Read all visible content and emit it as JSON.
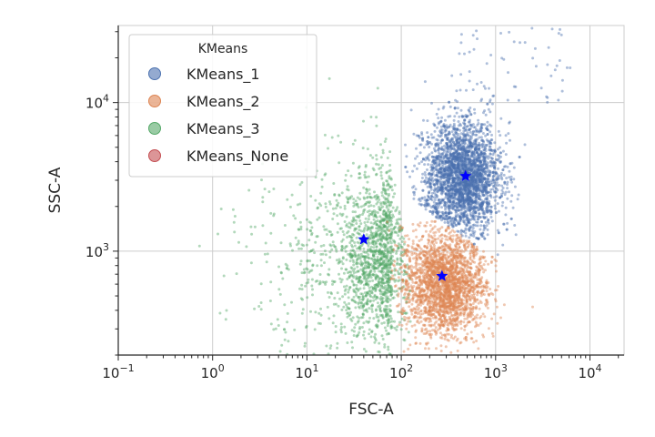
{
  "chart_data": {
    "type": "scatter",
    "xlabel": "FSC-A",
    "ylabel": "SSC-A",
    "xscale": "log",
    "yscale": "log",
    "xlim": [
      0.1,
      23000
    ],
    "ylim": [
      200,
      33000
    ],
    "grid": true,
    "x_ticks": [
      {
        "value": 0.1,
        "base": "10",
        "exp": "−1"
      },
      {
        "value": 1,
        "base": "10",
        "exp": "0"
      },
      {
        "value": 10,
        "base": "10",
        "exp": "1"
      },
      {
        "value": 100,
        "base": "10",
        "exp": "2"
      },
      {
        "value": 1000,
        "base": "10",
        "exp": "3"
      },
      {
        "value": 10000,
        "base": "10",
        "exp": "4"
      }
    ],
    "y_ticks": [
      {
        "value": 1000,
        "base": "10",
        "exp": "3"
      },
      {
        "value": 10000,
        "base": "10",
        "exp": "4"
      }
    ],
    "legend": {
      "title": "KMeans",
      "placement": "upper-left",
      "entries": [
        {
          "name": "KMeans_1",
          "color": "#4c72b0"
        },
        {
          "name": "KMeans_2",
          "color": "#dd8452"
        },
        {
          "name": "KMeans_3",
          "color": "#55a868"
        },
        {
          "name": "KMeans_None",
          "color": "#c44e52"
        }
      ]
    },
    "series": [
      {
        "name": "KMeans_1",
        "color": "#4c72b0",
        "center": [
          480,
          3200
        ],
        "extent": {
          "x": [
            100,
            1500
          ],
          "y": [
            1000,
            20000
          ]
        }
      },
      {
        "name": "KMeans_2",
        "color": "#dd8452",
        "center": [
          270,
          680
        ],
        "extent": {
          "x": [
            80,
            2000
          ],
          "y": [
            200,
            2000
          ]
        }
      },
      {
        "name": "KMeans_3",
        "color": "#55a868",
        "center": [
          40,
          1200
        ],
        "extent": {
          "x": [
            0.3,
            150
          ],
          "y": [
            250,
            10000
          ]
        }
      },
      {
        "name": "KMeans_None",
        "color": "#c44e52",
        "center": null,
        "extent": null
      }
    ],
    "centroids": {
      "marker": "star",
      "color": "#0000ff",
      "points": [
        {
          "series": "KMeans_1",
          "x": 480,
          "y": 3200
        },
        {
          "series": "KMeans_2",
          "x": 270,
          "y": 680
        },
        {
          "series": "KMeans_3",
          "x": 40,
          "y": 1200
        }
      ]
    }
  }
}
